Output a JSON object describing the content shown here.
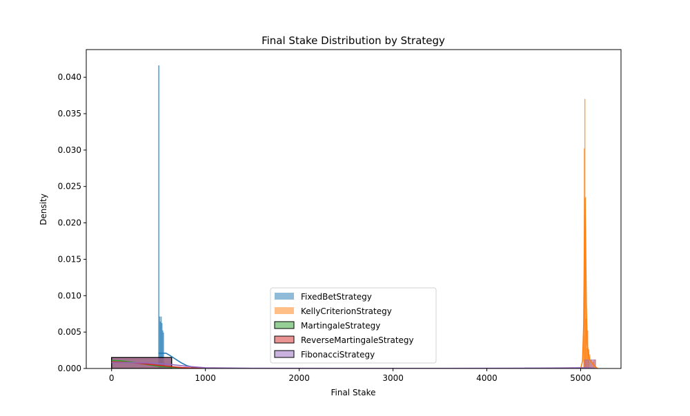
{
  "chart_data": {
    "type": "histogram",
    "title": "Final Stake Distribution by Strategy",
    "xlabel": "Final Stake",
    "ylabel": "Density",
    "xlim": [
      -270,
      5430
    ],
    "ylim": [
      0,
      0.0438
    ],
    "xticks": [
      0,
      1000,
      2000,
      3000,
      4000,
      5000
    ],
    "yticks": [
      0.0,
      0.005,
      0.01,
      0.015,
      0.02,
      0.025,
      0.03,
      0.035,
      0.04
    ],
    "ytick_labels": [
      "0.000",
      "0.005",
      "0.010",
      "0.015",
      "0.020",
      "0.025",
      "0.030",
      "0.035",
      "0.040"
    ],
    "grid": false,
    "legend_position": "lower center",
    "series": [
      {
        "name": "FixedBetStrategy",
        "color": "#1f77b4",
        "bins": [
          {
            "x0": 490,
            "x1": 500,
            "y": 0.0
          },
          {
            "x0": 500,
            "x1": 508,
            "y": 0.0416
          },
          {
            "x0": 508,
            "x1": 516,
            "y": 0.0071
          },
          {
            "x0": 516,
            "x1": 524,
            "y": 0.0064
          },
          {
            "x0": 524,
            "x1": 532,
            "y": 0.0071
          },
          {
            "x0": 532,
            "x1": 540,
            "y": 0.0062
          },
          {
            "x0": 540,
            "x1": 548,
            "y": 0.0052
          },
          {
            "x0": 548,
            "x1": 556,
            "y": 0.0049
          },
          {
            "x0": 556,
            "x1": 564,
            "y": 0.0008
          },
          {
            "x0": 564,
            "x1": 572,
            "y": 0.0004
          }
        ],
        "kde": [
          [
            500,
            0.0021
          ],
          [
            540,
            0.0021
          ],
          [
            580,
            0.0021
          ],
          [
            620,
            0.0018
          ],
          [
            680,
            0.0013
          ],
          [
            740,
            0.0008
          ],
          [
            800,
            0.0004
          ],
          [
            860,
            0.0002
          ],
          [
            920,
            0.0001
          ],
          [
            1000,
            4e-05
          ],
          [
            1100,
            0.0
          ]
        ]
      },
      {
        "name": "KellyCriterionStrategy",
        "color": "#ff7f0e",
        "bins": [
          {
            "x0": 5030,
            "x1": 5036,
            "y": 0.0045
          },
          {
            "x0": 5036,
            "x1": 5042,
            "y": 0.0302
          },
          {
            "x0": 5042,
            "x1": 5048,
            "y": 0.037
          },
          {
            "x0": 5048,
            "x1": 5054,
            "y": 0.0235
          },
          {
            "x0": 5054,
            "x1": 5060,
            "y": 0.0068
          },
          {
            "x0": 5060,
            "x1": 5066,
            "y": 0.0053
          },
          {
            "x0": 5066,
            "x1": 5072,
            "y": 0.0028
          },
          {
            "x0": 5072,
            "x1": 5078,
            "y": 0.0052
          },
          {
            "x0": 5078,
            "x1": 5084,
            "y": 0.0022
          },
          {
            "x0": 5084,
            "x1": 5090,
            "y": 0.0026
          },
          {
            "x0": 5090,
            "x1": 5100,
            "y": 0.0019
          },
          {
            "x0": 5100,
            "x1": 5120,
            "y": 0.0012
          },
          {
            "x0": 5120,
            "x1": 5140,
            "y": 0.0009
          },
          {
            "x0": 5140,
            "x1": 5160,
            "y": 0.0012
          }
        ],
        "kde": [
          [
            5000,
            0.0
          ],
          [
            5020,
            0.001
          ],
          [
            5032,
            0.006
          ],
          [
            5040,
            0.017
          ],
          [
            5046,
            0.0234
          ],
          [
            5052,
            0.019
          ],
          [
            5060,
            0.009
          ],
          [
            5070,
            0.0035
          ],
          [
            5085,
            0.0018
          ],
          [
            5100,
            0.0011
          ],
          [
            5130,
            0.0006
          ],
          [
            5160,
            0.0002
          ],
          [
            5180,
            0.0
          ]
        ]
      },
      {
        "name": "MartingaleStrategy",
        "color": "#2ca02c",
        "bins": [
          {
            "x0": 0,
            "x1": 640,
            "y": 0.0013
          }
        ],
        "kde": [
          [
            0,
            0.0011
          ],
          [
            100,
            0.00105
          ],
          [
            200,
            0.0009
          ],
          [
            300,
            0.0007
          ],
          [
            400,
            0.0005
          ],
          [
            500,
            0.0003
          ],
          [
            600,
            0.0002
          ],
          [
            700,
            0.0001
          ],
          [
            850,
            3e-05
          ],
          [
            1000,
            0.0
          ]
        ]
      },
      {
        "name": "ReverseMartingaleStrategy",
        "color": "#d62728",
        "bins": [
          {
            "x0": 0,
            "x1": 640,
            "y": 0.0015
          }
        ],
        "kde": [
          [
            0,
            0.0009
          ],
          [
            150,
            0.00085
          ],
          [
            300,
            0.0007
          ],
          [
            450,
            0.0005
          ],
          [
            600,
            0.0003
          ],
          [
            750,
            0.00012
          ],
          [
            900,
            4e-05
          ],
          [
            1050,
            0.0
          ]
        ]
      },
      {
        "name": "FibonacciStrategy",
        "color": "#9467bd",
        "bins": [
          {
            "x0": 0,
            "x1": 640,
            "y": 0.0015
          },
          {
            "x0": 640,
            "x1": 1280,
            "y": 0.0001
          },
          {
            "x0": 4400,
            "x1": 5040,
            "y": 0.0001
          },
          {
            "x0": 5040,
            "x1": 5160,
            "y": 0.0012
          }
        ],
        "kde": [
          [
            0,
            0.0008
          ],
          [
            200,
            0.0008
          ],
          [
            400,
            0.00075
          ],
          [
            600,
            0.0006
          ],
          [
            800,
            0.0003
          ],
          [
            1000,
            0.0001
          ],
          [
            1500,
            3e-05
          ],
          [
            2500,
            2e-05
          ],
          [
            3500,
            2e-05
          ],
          [
            4500,
            4e-05
          ],
          [
            5000,
            0.0001
          ],
          [
            5080,
            0.0001
          ],
          [
            5160,
            0.0
          ]
        ]
      }
    ]
  }
}
